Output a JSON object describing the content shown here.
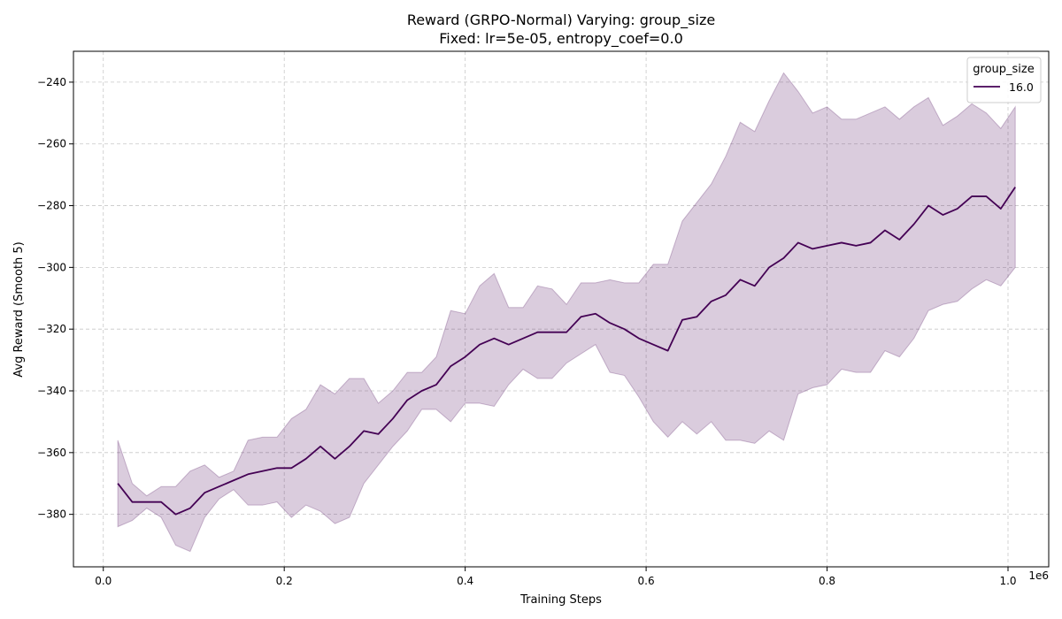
{
  "chart_data": {
    "type": "line",
    "title_line1": "Reward (GRPO-Normal) Varying: group_size",
    "title_line2": "Fixed: lr=5e-05, entropy_coef=0.0",
    "xlabel": "Training Steps",
    "ylabel": "Avg Reward (Smooth 5)",
    "x_offset_label": "1e6",
    "xlim": [
      -0.033,
      1.045
    ],
    "ylim": [
      -397,
      -230
    ],
    "xticks": [
      0.0,
      0.2,
      0.4,
      0.6,
      0.8,
      1.0
    ],
    "xtick_labels": [
      "0.0",
      "0.2",
      "0.4",
      "0.6",
      "0.8",
      "1.0"
    ],
    "yticks": [
      -380,
      -360,
      -340,
      -320,
      -300,
      -280,
      -260,
      -240
    ],
    "ytick_labels": [
      "−380",
      "−360",
      "−340",
      "−320",
      "−300",
      "−280",
      "−260",
      "−240"
    ],
    "grid": true,
    "legend": {
      "title": "group_size",
      "position": "top-right"
    },
    "colors": {
      "line": "#440154",
      "band": "#440154"
    },
    "series": [
      {
        "name": "16.0",
        "x": [
          0.016,
          0.032,
          0.048,
          0.064,
          0.08,
          0.096,
          0.112,
          0.128,
          0.144,
          0.16,
          0.176,
          0.192,
          0.208,
          0.224,
          0.24,
          0.256,
          0.272,
          0.288,
          0.304,
          0.32,
          0.336,
          0.352,
          0.368,
          0.384,
          0.4,
          0.416,
          0.432,
          0.448,
          0.464,
          0.48,
          0.496,
          0.512,
          0.528,
          0.544,
          0.56,
          0.576,
          0.592,
          0.608,
          0.624,
          0.64,
          0.656,
          0.672,
          0.688,
          0.704,
          0.72,
          0.736,
          0.752,
          0.768,
          0.784,
          0.8,
          0.816,
          0.832,
          0.848,
          0.864,
          0.88,
          0.896,
          0.912,
          0.928,
          0.944,
          0.96,
          0.976,
          0.992,
          1.008
        ],
        "mean": [
          -370,
          -376,
          -376,
          -376,
          -380,
          -378,
          -373,
          -371,
          -369,
          -367,
          -366,
          -365,
          -365,
          -362,
          -358,
          -362,
          -358,
          -353,
          -354,
          -349,
          -343,
          -340,
          -338,
          -332,
          -329,
          -325,
          -323,
          -325,
          -323,
          -321,
          -321,
          -321,
          -316,
          -315,
          -318,
          -320,
          -323,
          -325,
          -327,
          -317,
          -316,
          -311,
          -309,
          -304,
          -306,
          -300,
          -297,
          -292,
          -294,
          -293,
          -292,
          -293,
          -292,
          -288,
          -291,
          -286,
          -280,
          -283,
          -281,
          -277,
          -277,
          -281,
          -274
        ],
        "upper": [
          -356,
          -370,
          -374,
          -371,
          -371,
          -366,
          -364,
          -368,
          -366,
          -356,
          -355,
          -355,
          -349,
          -346,
          -338,
          -341,
          -336,
          -336,
          -344,
          -340,
          -334,
          -334,
          -329,
          -314,
          -315,
          -306,
          -302,
          -313,
          -313,
          -306,
          -307,
          -312,
          -305,
          -305,
          -304,
          -305,
          -305,
          -299,
          -299,
          -285,
          -279,
          -273,
          -264,
          -253,
          -256,
          -246,
          -237,
          -243,
          -250,
          -248,
          -252,
          -252,
          -250,
          -248,
          -252,
          -248,
          -245,
          -254,
          -251,
          -247,
          -250,
          -255,
          -248
        ],
        "lower": [
          -384,
          -382,
          -378,
          -381,
          -390,
          -392,
          -381,
          -375,
          -372,
          -377,
          -377,
          -376,
          -381,
          -377,
          -379,
          -383,
          -381,
          -370,
          -364,
          -358,
          -353,
          -346,
          -346,
          -350,
          -344,
          -344,
          -345,
          -338,
          -333,
          -336,
          -336,
          -331,
          -328,
          -325,
          -334,
          -335,
          -342,
          -350,
          -355,
          -350,
          -354,
          -350,
          -356,
          -356,
          -357,
          -353,
          -356,
          -341,
          -339,
          -338,
          -333,
          -334,
          -334,
          -327,
          -329,
          -323,
          -314,
          -312,
          -311,
          -307,
          -304,
          -306,
          -300
        ]
      }
    ]
  }
}
